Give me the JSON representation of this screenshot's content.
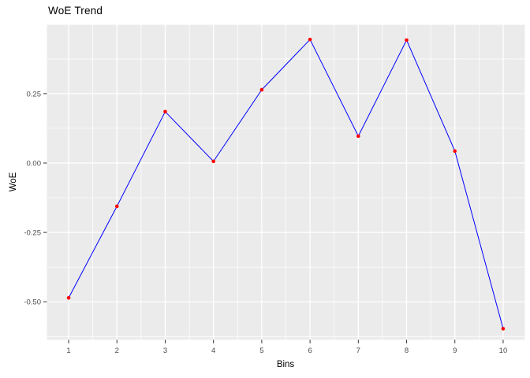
{
  "header": {
    "title": "WoE Trend"
  },
  "chart_data": {
    "type": "line",
    "title": "WoE Trend",
    "xlabel": "Bins",
    "ylabel": "WoE",
    "x": [
      1,
      2,
      3,
      4,
      5,
      6,
      7,
      8,
      9,
      10
    ],
    "categories": [
      "1",
      "2",
      "3",
      "4",
      "5",
      "6",
      "7",
      "8",
      "9",
      "10"
    ],
    "values": [
      -0.486,
      -0.156,
      0.185,
      0.006,
      0.264,
      0.445,
      0.097,
      0.443,
      0.043,
      -0.597
    ],
    "series": [
      {
        "name": "WoE",
        "values": [
          -0.486,
          -0.156,
          0.185,
          0.006,
          0.264,
          0.445,
          0.097,
          0.443,
          0.043,
          -0.597
        ]
      }
    ],
    "ytick_values": [
      0.25,
      0,
      -0.25,
      -0.5
    ],
    "ytick_labels": [
      "0.25",
      "0.00",
      "-0.25",
      "-0.50"
    ],
    "xlim": [
      0.55,
      10.45
    ],
    "ylim": [
      -0.637,
      0.498
    ],
    "grid": "on",
    "legend_position": "none",
    "colors": {
      "line": "#0000FF",
      "point": "#FF0000",
      "panel_bg": "#EBEBEB",
      "grid": "#FFFFFF",
      "tick_text": "#4D4D4D",
      "tick_mark": "#333333",
      "axis_title": "#000000",
      "plot_bg": "#FFFFFF"
    }
  }
}
